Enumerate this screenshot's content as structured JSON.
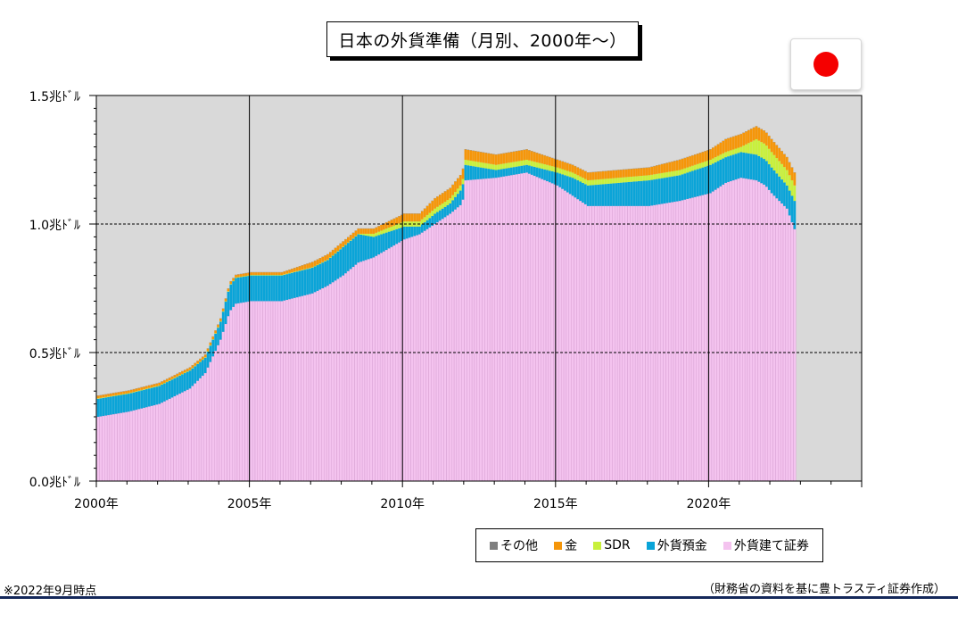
{
  "title": "日本の外貨準備（月別、2000年～）",
  "note": "※2022年9月時点",
  "source": "（財務省の資料を基に豊トラスティ証券作成）",
  "chart_data": {
    "type": "bar",
    "stacked": true,
    "title": "日本の外貨準備（月別、2000年～）",
    "ytick_labels": [
      "1.5兆ﾄﾞﾙ",
      "1.0兆ﾄﾞﾙ",
      "0.5兆ﾄﾞﾙ",
      "0.0兆ﾄﾞﾙ"
    ],
    "yticks": [
      1.5,
      1.0,
      0.5,
      0.0
    ],
    "ylim": [
      0,
      1.5
    ],
    "ylabel": "",
    "xlabel": "",
    "xtick_labels": [
      "2000年",
      "2005年",
      "2010年",
      "2015年",
      "2020年"
    ],
    "xticks": [
      2000,
      2005,
      2010,
      2015,
      2020
    ],
    "xlim": [
      2000,
      2025
    ],
    "grid": "vertical solid at 2005, 2010, 2015, 2020; horizontal dashed at 0.5 and 1.0",
    "legend_position": "bottom-right",
    "x_anchors": [
      2000.0,
      2001.0,
      2002.0,
      2002.5,
      2003.0,
      2003.5,
      2004.0,
      2004.3,
      2004.5,
      2005.0,
      2006.0,
      2007.0,
      2007.5,
      2008.0,
      2008.5,
      2009.0,
      2010.0,
      2010.5,
      2011.0,
      2011.5,
      2011.9,
      2012.0,
      2013.0,
      2014.0,
      2015.0,
      2015.5,
      2016.0,
      2017.0,
      2018.0,
      2019.0,
      2020.0,
      2020.5,
      2021.0,
      2021.5,
      2021.8,
      2022.0,
      2022.5,
      2022.75
    ],
    "series": [
      {
        "name": "外貨建て証券",
        "color": "#f4c3ef",
        "values": [
          0.25,
          0.27,
          0.3,
          0.33,
          0.36,
          0.42,
          0.55,
          0.66,
          0.69,
          0.7,
          0.7,
          0.73,
          0.76,
          0.8,
          0.85,
          0.87,
          0.94,
          0.96,
          1.0,
          1.04,
          1.08,
          1.17,
          1.18,
          1.2,
          1.15,
          1.11,
          1.07,
          1.07,
          1.07,
          1.09,
          1.12,
          1.16,
          1.18,
          1.17,
          1.15,
          1.12,
          1.06,
          0.98
        ]
      },
      {
        "name": "外貨預金",
        "color": "#0aa4d8",
        "values": [
          0.07,
          0.07,
          0.07,
          0.07,
          0.07,
          0.06,
          0.07,
          0.1,
          0.1,
          0.1,
          0.1,
          0.1,
          0.1,
          0.11,
          0.11,
          0.08,
          0.05,
          0.03,
          0.04,
          0.04,
          0.06,
          0.06,
          0.03,
          0.03,
          0.05,
          0.07,
          0.08,
          0.09,
          0.1,
          0.1,
          0.11,
          0.1,
          0.1,
          0.1,
          0.1,
          0.1,
          0.09,
          0.11
        ]
      },
      {
        "name": "SDR",
        "color": "#c8f03c",
        "values": [
          0.002,
          0.002,
          0.002,
          0.002,
          0.002,
          0.002,
          0.002,
          0.002,
          0.002,
          0.002,
          0.002,
          0.002,
          0.002,
          0.002,
          0.002,
          0.012,
          0.02,
          0.02,
          0.02,
          0.02,
          0.02,
          0.02,
          0.02,
          0.02,
          0.02,
          0.02,
          0.02,
          0.02,
          0.02,
          0.02,
          0.02,
          0.02,
          0.02,
          0.06,
          0.06,
          0.06,
          0.06,
          0.06
        ]
      },
      {
        "name": "金",
        "color": "#f5960a",
        "values": [
          0.01,
          0.01,
          0.01,
          0.01,
          0.01,
          0.01,
          0.01,
          0.01,
          0.01,
          0.01,
          0.01,
          0.02,
          0.02,
          0.02,
          0.02,
          0.02,
          0.03,
          0.03,
          0.04,
          0.04,
          0.04,
          0.04,
          0.04,
          0.04,
          0.03,
          0.03,
          0.03,
          0.03,
          0.03,
          0.04,
          0.04,
          0.05,
          0.05,
          0.05,
          0.05,
          0.05,
          0.05,
          0.05
        ]
      },
      {
        "name": "その他",
        "color": "#7f7f7f",
        "values": [
          0.001,
          0.001,
          0.001,
          0.001,
          0.001,
          0.001,
          0.001,
          0.001,
          0.001,
          0.001,
          0.001,
          0.001,
          0.001,
          0.001,
          0.001,
          0.001,
          0.001,
          0.001,
          0.001,
          0.001,
          0.001,
          0.001,
          0.001,
          0.001,
          0.001,
          0.001,
          0.001,
          0.001,
          0.001,
          0.001,
          0.001,
          0.001,
          0.001,
          0.001,
          0.001,
          0.001,
          0.001,
          0.001
        ]
      }
    ],
    "legend": [
      "その他",
      "金",
      "SDR",
      "外貨預金",
      "外貨建て証券"
    ],
    "data_end": 2022.75,
    "colors": {
      "plot_bg": "#d9d9d9",
      "bar_separator": "#cf8fc9",
      "footer_rule": "#14285a"
    }
  }
}
